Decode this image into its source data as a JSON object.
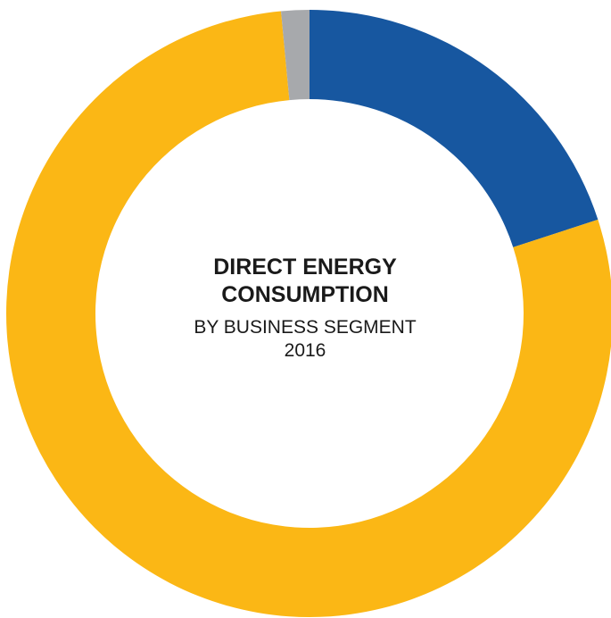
{
  "chart_data": {
    "type": "pie",
    "variant": "donut",
    "title_line1": "DIRECT ENERGY",
    "title_line2": "CONSUMPTION",
    "subtitle": "BY BUSINESS SEGMENT",
    "year": "2016",
    "legend": "none",
    "slices": [
      {
        "value": 20,
        "color": "#1757a0"
      },
      {
        "value": 78.5,
        "color": "#fbb715"
      },
      {
        "value": 1.5,
        "color": "#a7a9ac"
      }
    ]
  }
}
